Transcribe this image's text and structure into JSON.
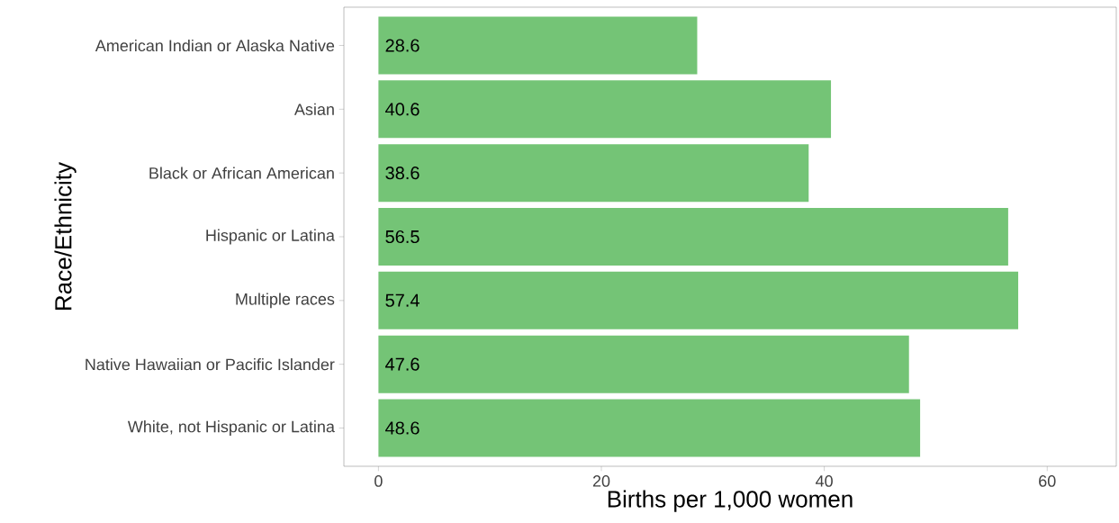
{
  "chart_data": {
    "type": "bar",
    "orientation": "horizontal",
    "xlabel": "Births per 1,000 women",
    "ylabel": "Race/Ethnicity",
    "categories": [
      "American Indian or Alaska Native",
      "Asian",
      "Black or African American",
      "Hispanic or Latina",
      "Multiple races",
      "Native Hawaiian or Pacific Islander",
      "White, not Hispanic or Latina"
    ],
    "values": [
      28.6,
      40.6,
      38.6,
      56.5,
      57.4,
      47.6,
      48.6
    ],
    "color": "#74c476",
    "xlim": [
      -3.1,
      66.2
    ],
    "xticks": [
      0,
      20,
      40,
      60
    ],
    "grid": false,
    "data_labels": true
  }
}
